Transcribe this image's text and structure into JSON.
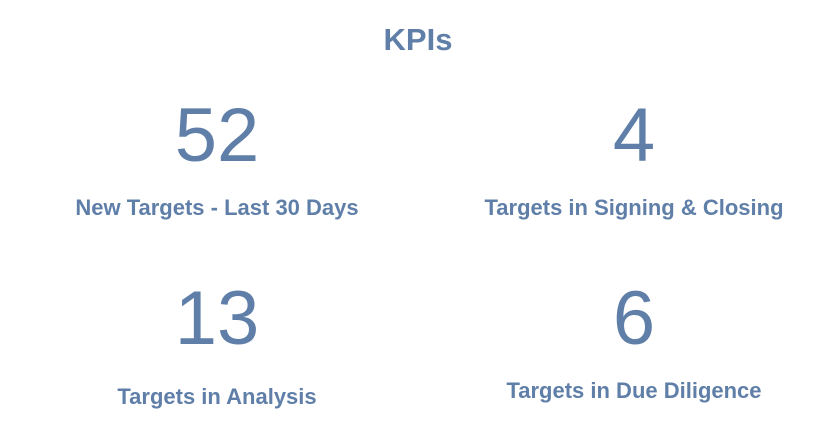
{
  "header": {
    "title": "KPIs"
  },
  "colors": {
    "text": "#5f7fa8",
    "background": "#ffffff"
  },
  "kpis": [
    {
      "value": "52",
      "label": "New Targets - Last 30 Days"
    },
    {
      "value": "4",
      "label": "Targets in Signing & Closing"
    },
    {
      "value": "13",
      "label": "Targets in Analysis"
    },
    {
      "value": "6",
      "label": "Targets in Due Diligence"
    }
  ]
}
